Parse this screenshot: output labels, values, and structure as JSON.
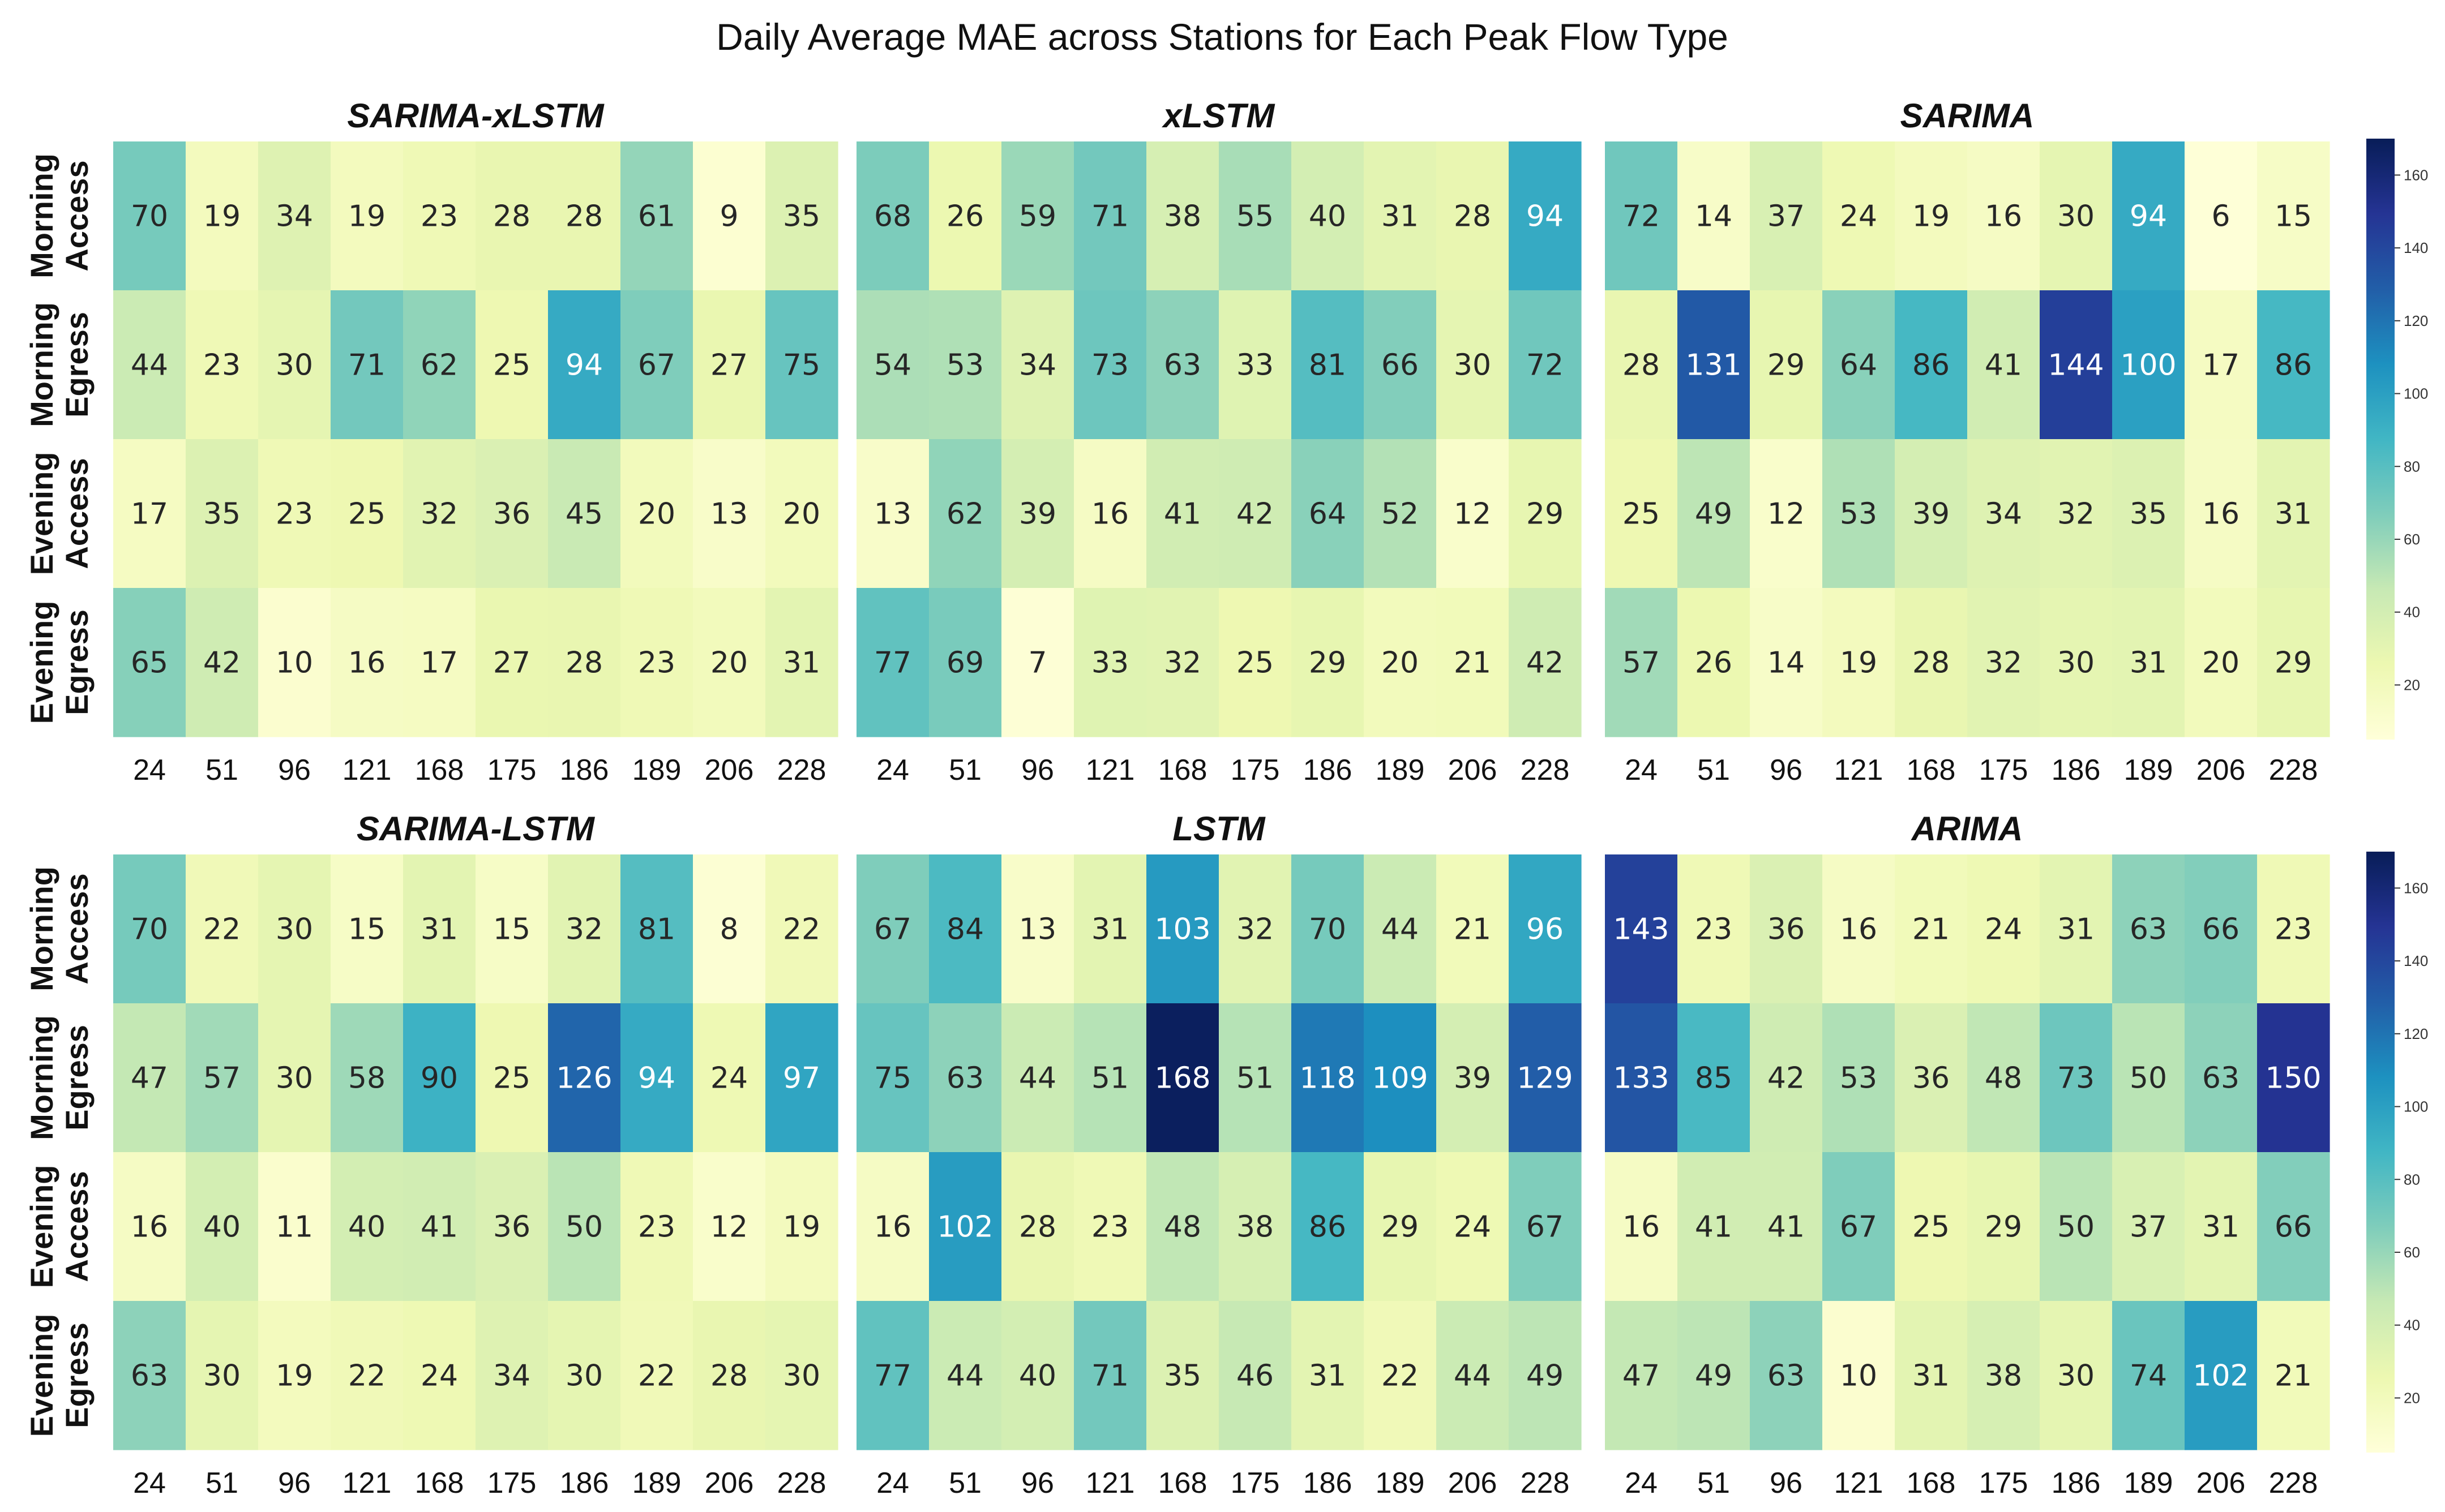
{
  "chart_data": {
    "type": "heatmap",
    "title": "Daily Average MAE across Stations for Each Peak Flow Type",
    "x_categories": [
      "24",
      "51",
      "96",
      "121",
      "168",
      "175",
      "186",
      "189",
      "206",
      "228"
    ],
    "y_categories": [
      [
        "Morning",
        "Access"
      ],
      [
        "Morning",
        "Egress"
      ],
      [
        "Evening",
        "Access"
      ],
      [
        "Evening",
        "Egress"
      ]
    ],
    "colormap": "YlGnBu",
    "color_range": [
      5,
      170
    ],
    "colorbar_ticks": [
      20,
      40,
      60,
      80,
      100,
      120,
      140,
      160
    ],
    "panels": [
      {
        "title": "SARIMA-xLSTM",
        "values": [
          [
            70,
            19,
            34,
            19,
            23,
            28,
            28,
            61,
            9,
            35
          ],
          [
            44,
            23,
            30,
            71,
            62,
            25,
            94,
            67,
            27,
            75
          ],
          [
            17,
            35,
            23,
            25,
            32,
            36,
            45,
            20,
            13,
            20
          ],
          [
            65,
            42,
            10,
            16,
            17,
            27,
            28,
            23,
            20,
            31
          ]
        ]
      },
      {
        "title": "xLSTM",
        "values": [
          [
            68,
            26,
            59,
            71,
            38,
            55,
            40,
            31,
            28,
            94
          ],
          [
            54,
            53,
            34,
            73,
            63,
            33,
            81,
            66,
            30,
            72
          ],
          [
            13,
            62,
            39,
            16,
            41,
            42,
            64,
            52,
            12,
            29
          ],
          [
            77,
            69,
            7,
            33,
            32,
            25,
            29,
            20,
            21,
            42
          ]
        ]
      },
      {
        "title": "SARIMA",
        "values": [
          [
            72,
            14,
            37,
            24,
            19,
            16,
            30,
            94,
            6,
            15
          ],
          [
            28,
            131,
            29,
            64,
            86,
            41,
            144,
            100,
            17,
            86
          ],
          [
            25,
            49,
            12,
            53,
            39,
            34,
            32,
            35,
            16,
            31
          ],
          [
            57,
            26,
            14,
            19,
            28,
            32,
            30,
            31,
            20,
            29
          ]
        ]
      },
      {
        "title": "SARIMA-LSTM",
        "values": [
          [
            70,
            22,
            30,
            15,
            31,
            15,
            32,
            81,
            8,
            22
          ],
          [
            47,
            57,
            30,
            58,
            90,
            25,
            126,
            94,
            24,
            97
          ],
          [
            16,
            40,
            11,
            40,
            41,
            36,
            50,
            23,
            12,
            19
          ],
          [
            63,
            30,
            19,
            22,
            24,
            34,
            30,
            22,
            28,
            30
          ]
        ]
      },
      {
        "title": "LSTM",
        "values": [
          [
            67,
            84,
            13,
            31,
            103,
            32,
            70,
            44,
            21,
            96
          ],
          [
            75,
            63,
            44,
            51,
            168,
            51,
            118,
            109,
            39,
            129
          ],
          [
            16,
            102,
            28,
            23,
            48,
            38,
            86,
            29,
            24,
            67
          ],
          [
            77,
            44,
            40,
            71,
            35,
            46,
            31,
            22,
            44,
            49
          ]
        ]
      },
      {
        "title": "ARIMA",
        "values": [
          [
            143,
            23,
            36,
            16,
            21,
            24,
            31,
            63,
            66,
            23
          ],
          [
            133,
            85,
            42,
            53,
            36,
            48,
            73,
            50,
            63,
            150
          ],
          [
            16,
            41,
            41,
            67,
            25,
            29,
            50,
            37,
            31,
            66
          ],
          [
            47,
            49,
            63,
            10,
            31,
            38,
            30,
            74,
            102,
            21
          ]
        ]
      }
    ]
  }
}
